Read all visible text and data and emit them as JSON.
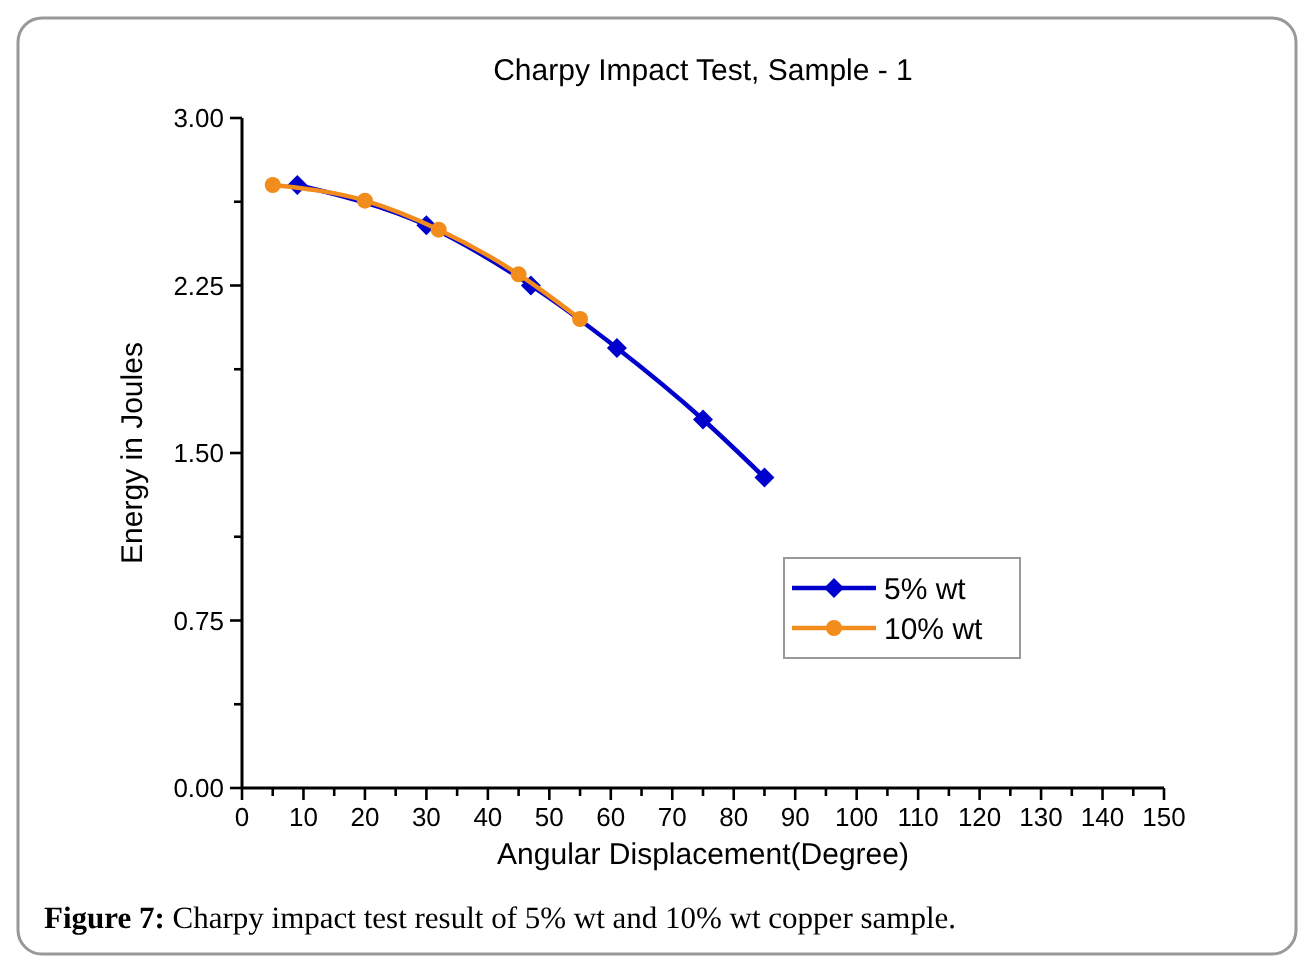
{
  "chart_data": {
    "type": "line",
    "title": "Charpy Impact Test, Sample - 1",
    "xlabel": "Angular Displacement(Degree)",
    "ylabel": "Energy in Joules",
    "xlim": [
      0,
      150
    ],
    "xticks": [
      0,
      {
        "value": 5,
        "label": null
      },
      10,
      {
        "value": 15,
        "label": null
      },
      20,
      {
        "value": 25,
        "label": null
      },
      30,
      {
        "value": 35,
        "label": null
      },
      40,
      {
        "value": 45,
        "label": null
      },
      50,
      {
        "value": 55,
        "label": null
      },
      60,
      {
        "value": 65,
        "label": null
      },
      70,
      {
        "value": 75,
        "label": null
      },
      80,
      {
        "value": 85,
        "label": null
      },
      90,
      {
        "value": 95,
        "label": null
      },
      100,
      {
        "value": 105,
        "label": null
      },
      110,
      {
        "value": 115,
        "label": null
      },
      120,
      {
        "value": 125,
        "label": null
      },
      130,
      {
        "value": 135,
        "label": null
      },
      140,
      {
        "value": 145,
        "label": null
      },
      150
    ],
    "ylim": [
      0,
      3
    ],
    "yticks": [
      {
        "value": 0,
        "label": "0.00"
      },
      {
        "value": 0.375,
        "label": null
      },
      {
        "value": 0.75,
        "label": "0.75"
      },
      {
        "value": 1.125,
        "label": null
      },
      {
        "value": 1.5,
        "label": "1.50"
      },
      {
        "value": 1.875,
        "label": null
      },
      {
        "value": 2.25,
        "label": "2.25"
      },
      {
        "value": 2.625,
        "label": null
      },
      {
        "value": 3,
        "label": "3.00"
      }
    ],
    "grid": false,
    "legend": "bottom right",
    "line_style": "solid",
    "series": [
      {
        "name": "5% wt",
        "color": "#0000cc",
        "marker": "diamond",
        "x": [
          9,
          30,
          47,
          61,
          75,
          85
        ],
        "values": [
          2.7,
          2.52,
          2.25,
          1.97,
          1.65,
          1.39
        ]
      },
      {
        "name": "10% wt",
        "color": "#f28c1c",
        "marker": "circle",
        "x": [
          5,
          20,
          32,
          45,
          55
        ],
        "values": [
          2.7,
          2.63,
          2.5,
          2.3,
          2.1
        ]
      }
    ],
    "annotations": [
      "Figure 7: Charpy impact test result of 5% wt and 10% wt copper sample."
    ]
  }
}
